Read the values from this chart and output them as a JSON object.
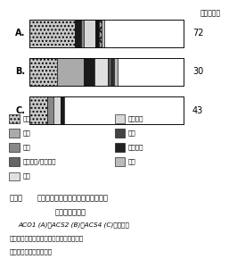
{
  "clone_label": "クローン数",
  "clone_counts": [
    72,
    30,
    43
  ],
  "bar_labels": [
    "A.",
    "B.",
    "C."
  ],
  "bars": [
    {
      "label": "A.",
      "segments": [
        {
          "value": 0.295,
          "color": "#c8c8c8",
          "hatch": "...."
        },
        {
          "value": 0.038,
          "color": "#1a1a1a",
          "hatch": ""
        },
        {
          "value": 0.02,
          "color": "#888888",
          "hatch": ""
        },
        {
          "value": 0.075,
          "color": "#d8d8d8",
          "hatch": "==="
        },
        {
          "value": 0.02,
          "color": "#111111",
          "hatch": ""
        },
        {
          "value": 0.02,
          "color": "#999999",
          "hatch": "xxx"
        },
        {
          "value": 0.02,
          "color": "#bbbbbb",
          "hatch": ""
        },
        {
          "value": 0.512,
          "color": "#ffffff",
          "hatch": ""
        }
      ]
    },
    {
      "label": "B.",
      "segments": [
        {
          "value": 0.175,
          "color": "#c8c8c8",
          "hatch": "...."
        },
        {
          "value": 0.175,
          "color": "#aaaaaa",
          "hatch": ""
        },
        {
          "value": 0.07,
          "color": "#1a1a1a",
          "hatch": ""
        },
        {
          "value": 0.09,
          "color": "#e0e0e0",
          "hatch": "==="
        },
        {
          "value": 0.02,
          "color": "#555555",
          "hatch": ""
        },
        {
          "value": 0.02,
          "color": "#333333",
          "hatch": ""
        },
        {
          "value": 0.02,
          "color": "#bbbbbb",
          "hatch": ""
        },
        {
          "value": 0.43,
          "color": "#ffffff",
          "hatch": ""
        }
      ]
    },
    {
      "label": "C.",
      "segments": [
        {
          "value": 0.115,
          "color": "#c8c8c8",
          "hatch": "...."
        },
        {
          "value": 0.038,
          "color": "#888888",
          "hatch": ""
        },
        {
          "value": 0.05,
          "color": "#d8d8d8",
          "hatch": "==="
        },
        {
          "value": 0.02,
          "color": "#1a1a1a",
          "hatch": ""
        },
        {
          "value": 0.777,
          "color": "#ffffff",
          "hatch": ""
        }
      ]
    }
  ],
  "left_legend": [
    {
      "label": "代蔑",
      "color": "#c8c8c8",
      "hatch": "...."
    },
    {
      "label": "転写",
      "color": "#aaaaaa",
      "hatch": ""
    },
    {
      "label": "輸送",
      "color": "#888888",
      "hatch": ""
    },
    {
      "label": "自己防衛/ストレス",
      "color": "#666666",
      "hatch": ""
    },
    {
      "label": "未知",
      "color": "#e0e0e0",
      "hatch": ""
    }
  ],
  "right_legend": [
    {
      "label": "細胞分裂",
      "color": "#d8d8d8",
      "hatch": "==="
    },
    {
      "label": "翻訳",
      "color": "#444444",
      "hatch": ""
    },
    {
      "label": "情報伝達",
      "color": "#222222",
      "hatch": ""
    },
    {
      "label": "発達",
      "color": "#bbbbbb",
      "hatch": ""
    }
  ],
  "caption_line1": "図３　多変量解析によって分類された遣伝",
  "caption_line2": "子群の機能推定",
  "caption_line3": "ACO1 (A)、ACS2 (B)、ACS4 (C)それぞれ",
  "caption_line4": "と類似した発現パターンに分類された遣伝",
  "caption_line5": "子群の機能を推定した。"
}
